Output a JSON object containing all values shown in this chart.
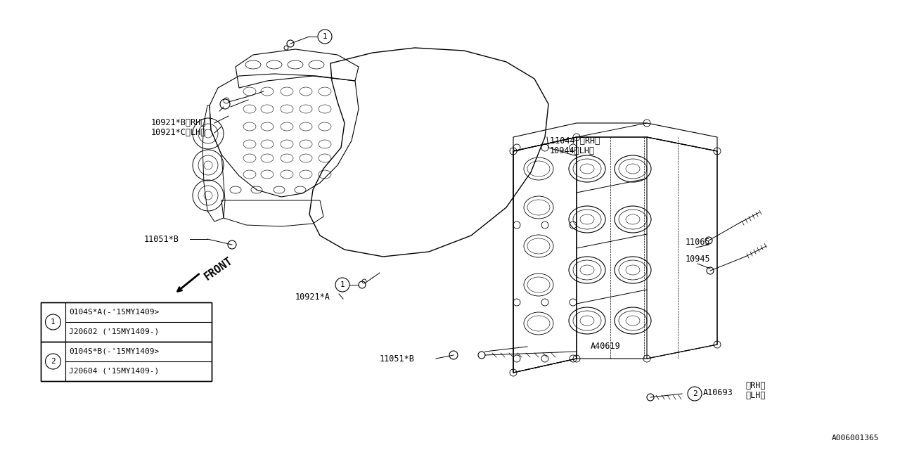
{
  "bg_color": "#ffffff",
  "fig_width": 12.8,
  "fig_height": 6.4,
  "font_size": 8.5,
  "font_family": "monospace",
  "labels": {
    "10921B_RH": "10921*B〈RH〉",
    "10921C_LH": "10921*C〈LH〉",
    "10921A": "10921*A",
    "11044_RH": "11044 〈RH〉",
    "10944_LH": "10944〈LH〉",
    "11051B": "11051*B",
    "11065": "11065",
    "10945": "10945",
    "A40619": "A40619",
    "A10693": "A10693",
    "RH": "〈RH〉",
    "LH": "〈LH〉",
    "front": "FRONT",
    "watermark": "A006001365"
  },
  "legend_items": [
    {
      "num": "1",
      "row1": "0104S*A(-'15MY1409>",
      "row2": "J20602 ('15MY1409-)"
    },
    {
      "num": "2",
      "row1": "0104S*B(-'15MY1409>",
      "row2": "J20604 ('15MY1409-)"
    }
  ]
}
